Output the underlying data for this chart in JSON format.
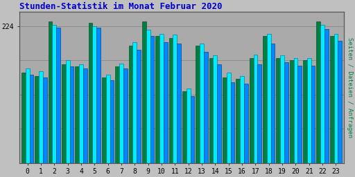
{
  "title": "Stunden-Statistik im Monat Februar 2020",
  "ylabel_right": "Seiten / Dateien / Anfragen",
  "hours": [
    0,
    1,
    2,
    3,
    4,
    5,
    6,
    7,
    8,
    9,
    10,
    11,
    12,
    13,
    14,
    15,
    16,
    17,
    18,
    19,
    20,
    21,
    22,
    23
  ],
  "seiten": [
    148,
    142,
    232,
    162,
    158,
    230,
    140,
    158,
    192,
    232,
    208,
    205,
    118,
    192,
    172,
    140,
    138,
    172,
    208,
    172,
    168,
    168,
    232,
    208
  ],
  "dateien": [
    155,
    150,
    226,
    168,
    162,
    224,
    145,
    163,
    198,
    218,
    212,
    210,
    122,
    196,
    177,
    148,
    143,
    178,
    212,
    177,
    172,
    172,
    226,
    212
  ],
  "anfragen": [
    145,
    140,
    222,
    158,
    155,
    222,
    136,
    155,
    185,
    208,
    198,
    196,
    110,
    182,
    162,
    132,
    130,
    162,
    196,
    165,
    160,
    160,
    220,
    200
  ],
  "color_seiten": "#008040",
  "color_dateien": "#00EEFF",
  "color_anfragen": "#0088FF",
  "background_color": "#C0C0C0",
  "plot_bg_color": "#AAAAAA",
  "title_color": "#0000CC",
  "grid_color": "#888888",
  "ylabel_right_color": "#008040",
  "ylim": [
    0,
    248
  ],
  "ytick_val": 224,
  "bar_width": 0.3,
  "group_width": 0.95
}
